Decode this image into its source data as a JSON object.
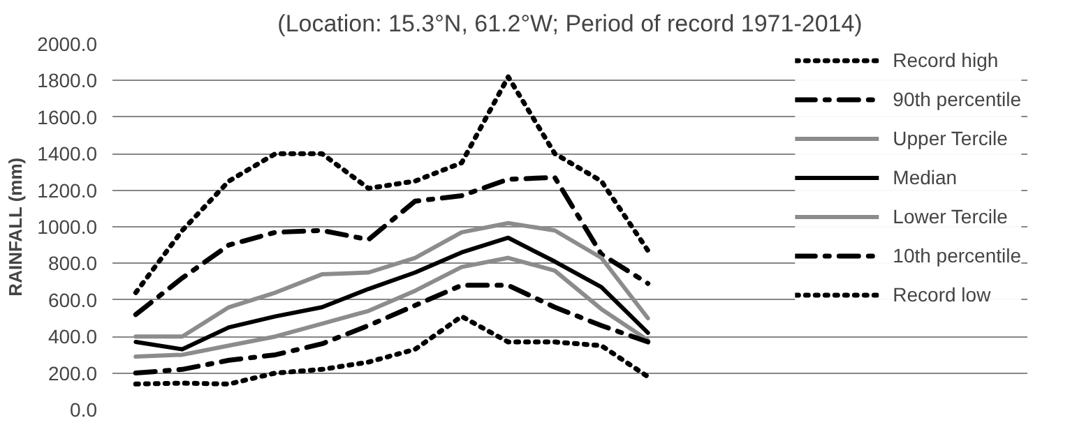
{
  "chart_data": {
    "type": "line",
    "title": "(Location: 15.3°N, 61.2°W; Period of record 1971-2014)",
    "ylabel": "RAINFALL (mm)",
    "categories": [
      null,
      null,
      null,
      null,
      null,
      null,
      null,
      null,
      null,
      null,
      null,
      null
    ],
    "series": [
      {
        "name": "Record high",
        "color": "#000000",
        "line_style": "dotted",
        "values": [
          640,
          980,
          1250,
          1400,
          1400,
          1210,
          1250,
          1350,
          1820,
          1400,
          1250,
          870
        ]
      },
      {
        "name": "90th percentile",
        "color": "#000000",
        "line_style": "dashdot",
        "values": [
          520,
          720,
          900,
          970,
          980,
          930,
          1140,
          1170,
          1260,
          1270,
          850,
          690
        ]
      },
      {
        "name": "Upper Tercile",
        "color": "#8c8c8c",
        "line_style": "solid",
        "values": [
          400,
          400,
          560,
          640,
          740,
          750,
          830,
          970,
          1020,
          980,
          830,
          500
        ]
      },
      {
        "name": "Median",
        "color": "#000000",
        "line_style": "solid",
        "values": [
          370,
          330,
          450,
          510,
          560,
          660,
          750,
          860,
          940,
          810,
          670,
          420
        ]
      },
      {
        "name": "Lower Tercile",
        "color": "#8c8c8c",
        "line_style": "solid",
        "values": [
          290,
          300,
          350,
          400,
          470,
          540,
          650,
          780,
          830,
          760,
          550,
          380
        ]
      },
      {
        "name": "10th percentile",
        "color": "#000000",
        "line_style": "dashdot",
        "values": [
          200,
          220,
          270,
          300,
          360,
          460,
          570,
          680,
          680,
          560,
          460,
          370
        ]
      },
      {
        "name": "Record low",
        "color": "#000000",
        "line_style": "dotted",
        "values": [
          140,
          145,
          140,
          200,
          220,
          260,
          330,
          510,
          370,
          370,
          350,
          180
        ]
      }
    ],
    "ylim": [
      0,
      2000
    ],
    "yticks": [
      {
        "value": 0,
        "label": "0.0"
      },
      {
        "value": 200,
        "label": "200.0"
      },
      {
        "value": 400,
        "label": "400.0"
      },
      {
        "value": 600,
        "label": "600.0"
      },
      {
        "value": 800,
        "label": "800.0"
      },
      {
        "value": 1000,
        "label": "1000.0"
      },
      {
        "value": 1200,
        "label": "1200.0"
      },
      {
        "value": 1400,
        "label": "1400.0"
      },
      {
        "value": 1600,
        "label": "1600.0"
      },
      {
        "value": 1800,
        "label": "1800.0"
      },
      {
        "value": 2000,
        "label": "2000.0"
      }
    ],
    "grid": "y",
    "legend": "right",
    "tick_labels": "y"
  }
}
